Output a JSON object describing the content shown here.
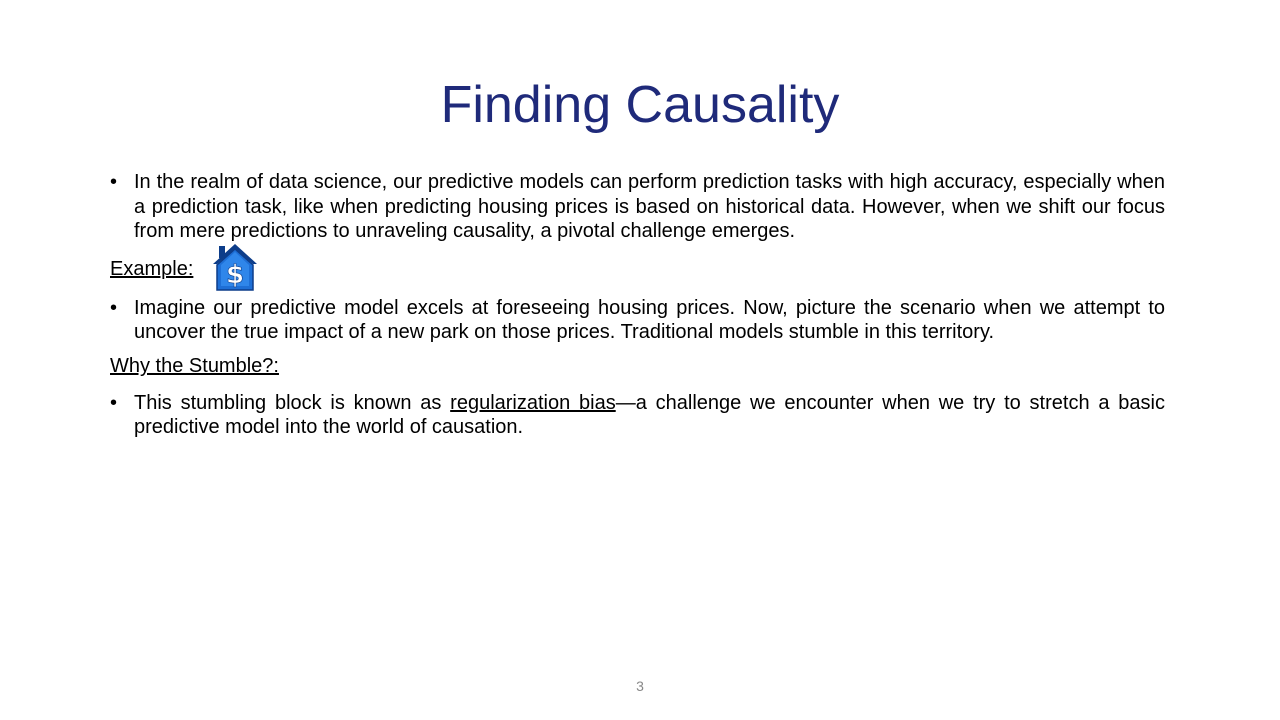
{
  "slide": {
    "title": "Finding Causality",
    "bullet1": "In the realm of data science, our predictive models can perform prediction tasks with high accuracy, especially when a prediction task, like when predicting housing prices is based on historical data. However, when we shift our focus from mere predictions to unraveling causality, a pivotal challenge emerges.",
    "example_label": "Example:",
    "example_icon": "house-dollar-icon",
    "bullet2": "Imagine our predictive model excels at foreseeing housing prices. Now, picture the scenario when we attempt to uncover the true impact of a new park on those prices. Traditional models stumble in this territory.",
    "why_label": "Why the Stumble?:",
    "bullet3_before": "This stumbling block is known as ",
    "bullet3_link": "regularization bias",
    "bullet3_after": "—a challenge we encounter when we try to stretch a basic predictive model into the world of causation.",
    "bullet_glyph": "•",
    "page_number": "3"
  },
  "colors": {
    "title": "#1f2a7a",
    "icon_fill": "#1e6fd6",
    "icon_dark": "#0d3d8a"
  }
}
